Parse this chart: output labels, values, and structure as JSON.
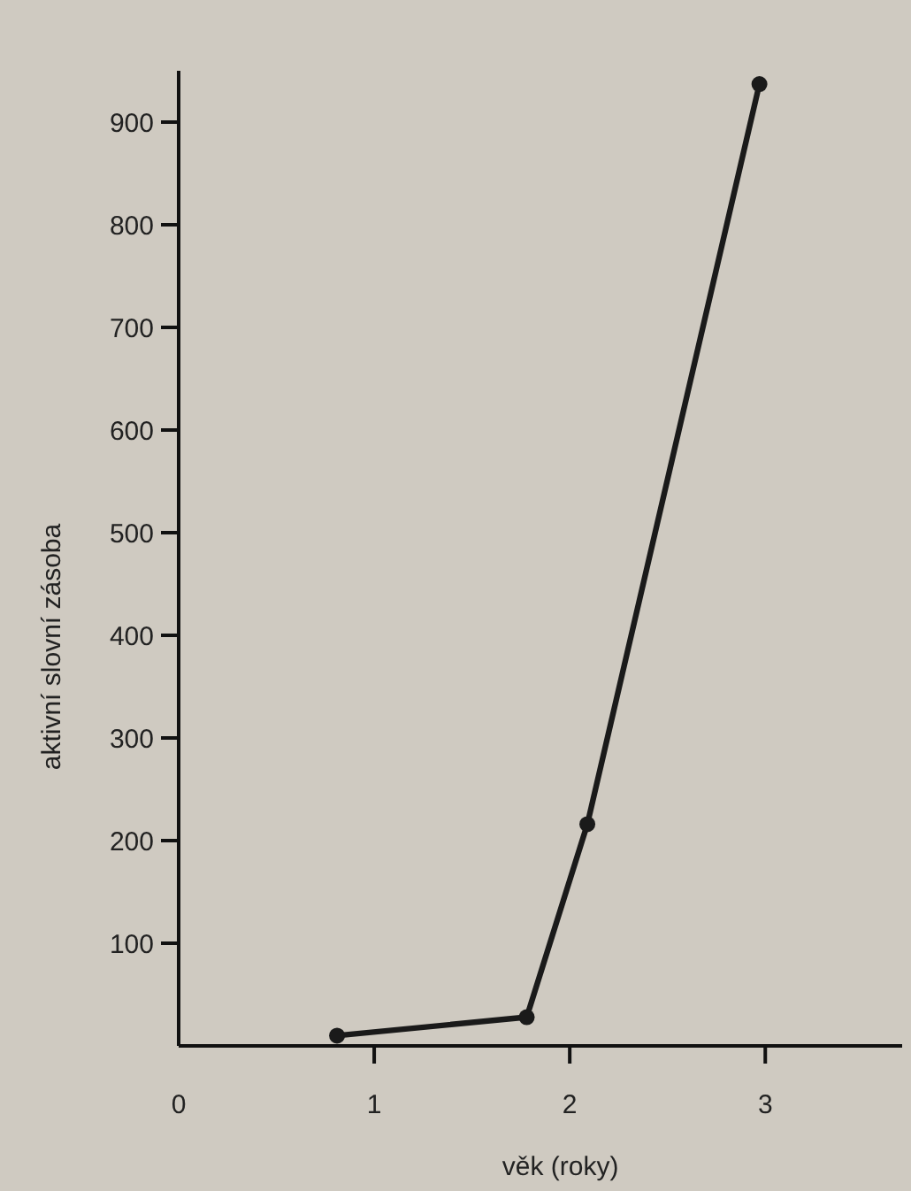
{
  "chart_data": {
    "type": "line",
    "xlabel": "věk (roky)",
    "ylabel": "aktivní slovní zásoba",
    "x": [
      0.81,
      1.78,
      2.09,
      2.97
    ],
    "series": [
      {
        "color": "#1a1a1a",
        "values": [
          10,
          28,
          216,
          937
        ]
      }
    ],
    "xlim": [
      0,
      3.7
    ],
    "ylim": [
      0,
      950
    ],
    "xticks": [
      0,
      1,
      2,
      3
    ],
    "yticks": [
      100,
      200,
      300,
      400,
      500,
      600,
      700,
      800,
      900
    ],
    "marker": "circle",
    "line_style": "solid"
  }
}
